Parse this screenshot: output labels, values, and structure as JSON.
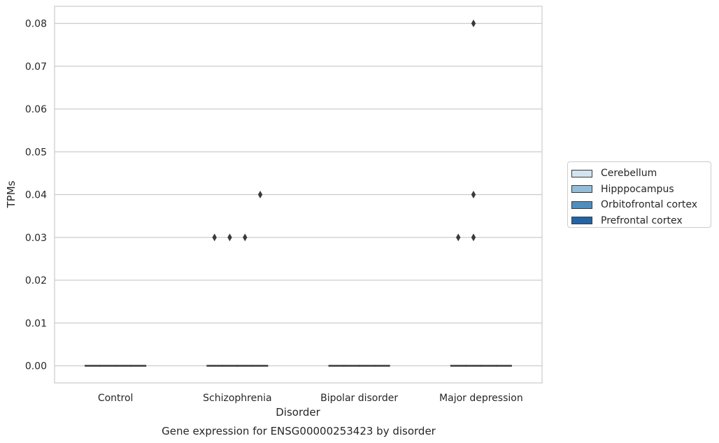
{
  "chart_data": {
    "type": "box",
    "title": "Gene expression for ENSG00000253423 by disorder",
    "xlabel": "Disorder",
    "ylabel": "TPMs",
    "categories": [
      "Control",
      "Schizophrenia",
      "Bipolar disorder",
      "Major depression"
    ],
    "ylim": [
      -0.004,
      0.084
    ],
    "yticks": [
      "0.00",
      "0.01",
      "0.02",
      "0.03",
      "0.04",
      "0.05",
      "0.06",
      "0.07",
      "0.08"
    ],
    "grid": true,
    "legend_placement": "right",
    "series": [
      {
        "name": "Cerebellum",
        "color": "#d3e3ef",
        "medians": [
          0,
          0,
          0,
          0
        ],
        "outliers": [
          [],
          [
            0.03
          ],
          [],
          [
            0.03
          ]
        ]
      },
      {
        "name": "Hipppocampus",
        "color": "#94bdd8",
        "medians": [
          0,
          0,
          0,
          0
        ],
        "outliers": [
          [],
          [
            0.03
          ],
          [],
          [
            0.08,
            0.04,
            0.03
          ]
        ]
      },
      {
        "name": "Orbitofrontal cortex",
        "color": "#4f8fc0",
        "medians": [
          0,
          0,
          0,
          0
        ],
        "outliers": [
          [],
          [
            0.03
          ],
          [],
          []
        ]
      },
      {
        "name": "Prefrontal cortex",
        "color": "#2264a7",
        "medians": [
          0,
          0,
          0,
          0
        ],
        "outliers": [
          [],
          [
            0.04
          ],
          [],
          []
        ]
      }
    ]
  }
}
